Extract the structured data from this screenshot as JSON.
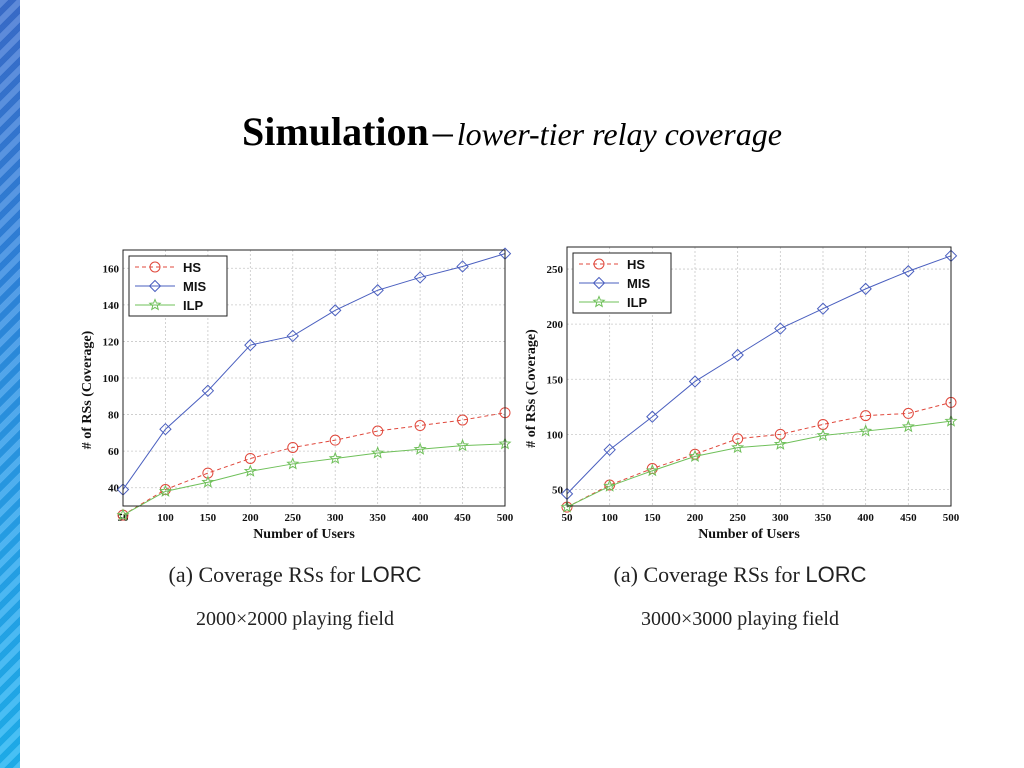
{
  "slide": {
    "title_main": "Simulation",
    "title_dash": "–",
    "title_sub": "lower-tier relay coverage"
  },
  "chart_data": [
    {
      "type": "line",
      "xlabel": "Number of Users",
      "ylabel": "# of RSs (Coverage)",
      "x": [
        50,
        100,
        150,
        200,
        250,
        300,
        350,
        400,
        450,
        500
      ],
      "xlim": [
        50,
        500
      ],
      "ylim": [
        30,
        170
      ],
      "yticks": [
        40,
        60,
        80,
        100,
        120,
        140,
        160
      ],
      "grid": true,
      "legend_position": "top-left",
      "series": [
        {
          "name": "HS",
          "color": "#e0483c",
          "marker": "circle",
          "dashed": true,
          "values": [
            25,
            39,
            48,
            56,
            62,
            66,
            71,
            74,
            77,
            81
          ]
        },
        {
          "name": "MIS",
          "color": "#4a5fbf",
          "marker": "diamond",
          "dashed": false,
          "values": [
            39,
            72,
            93,
            118,
            123,
            137,
            148,
            155,
            161,
            168
          ]
        },
        {
          "name": "ILP",
          "color": "#6fc05a",
          "marker": "star",
          "dashed": false,
          "values": [
            25,
            38,
            43,
            49,
            53,
            56,
            59,
            61,
            63,
            64
          ]
        }
      ],
      "caption_label": "(a)",
      "caption_text": "Coverage RSs for",
      "caption_sf": "LORC",
      "caption_field": "2000×2000 playing field"
    },
    {
      "type": "line",
      "xlabel": "Number of Users",
      "ylabel": "# of RSs (Coverage)",
      "x": [
        50,
        100,
        150,
        200,
        250,
        300,
        350,
        400,
        450,
        500
      ],
      "xlim": [
        50,
        500
      ],
      "ylim": [
        35,
        270
      ],
      "yticks": [
        50,
        100,
        150,
        200,
        250
      ],
      "grid": true,
      "legend_position": "top-left",
      "series": [
        {
          "name": "HS",
          "color": "#e0483c",
          "marker": "circle",
          "dashed": true,
          "values": [
            34,
            54,
            69,
            82,
            96,
            100,
            109,
            117,
            119,
            129
          ]
        },
        {
          "name": "MIS",
          "color": "#4a5fbf",
          "marker": "diamond",
          "dashed": false,
          "values": [
            46,
            86,
            116,
            148,
            172,
            196,
            214,
            232,
            248,
            262
          ]
        },
        {
          "name": "ILP",
          "color": "#6fc05a",
          "marker": "star",
          "dashed": false,
          "values": [
            34,
            53,
            67,
            80,
            88,
            91,
            99,
            103,
            107,
            112
          ]
        }
      ],
      "caption_label": "(a)",
      "caption_text": "Coverage RSs for",
      "caption_sf": "LORC",
      "caption_field": "3000×3000 playing field"
    }
  ]
}
